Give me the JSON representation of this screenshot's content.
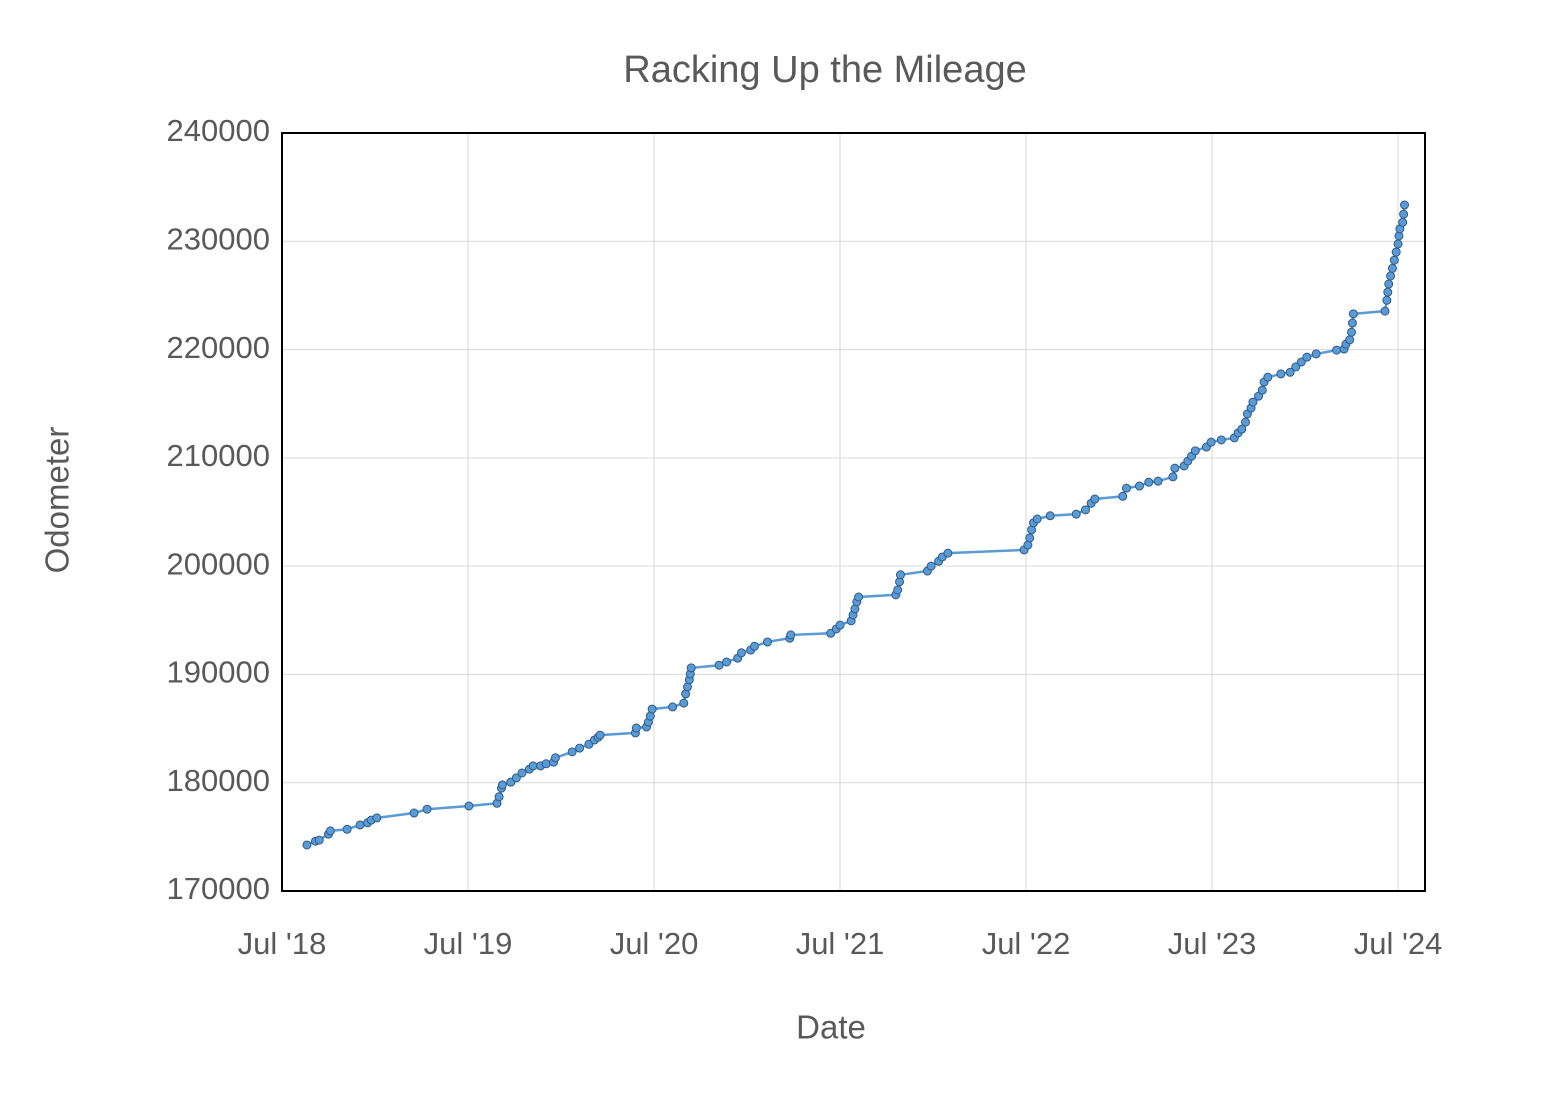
{
  "chart_data": {
    "type": "line",
    "title": "Racking Up the Mileage",
    "x_label": "Date",
    "y_label": "Odometer",
    "color": "#5b9bd5",
    "marker_edge_color": "#2e5b8a",
    "markers": true,
    "grid": true,
    "xlim": [
      2018.5,
      2024.645
    ],
    "ylim": [
      170000,
      240000
    ],
    "xticks": [
      {
        "value": 2018.5,
        "label": "Jul '18"
      },
      {
        "value": 2019.5,
        "label": "Jul '19"
      },
      {
        "value": 2020.5,
        "label": "Jul '20"
      },
      {
        "value": 2021.5,
        "label": "Jul '21"
      },
      {
        "value": 2022.5,
        "label": "Jul '22"
      },
      {
        "value": 2023.5,
        "label": "Jul '23"
      },
      {
        "value": 2024.5,
        "label": "Jul '24"
      }
    ],
    "yticks": [
      170000,
      180000,
      190000,
      200000,
      210000,
      220000,
      230000,
      240000
    ],
    "x": [
      2018.634,
      2018.68,
      2018.7,
      2018.75,
      2018.76,
      2018.85,
      2018.92,
      2018.96,
      2018.98,
      2019.01,
      2019.21,
      2019.28,
      2019.505,
      2019.656,
      2019.667,
      2019.68,
      2019.685,
      2019.73,
      2019.76,
      2019.79,
      2019.83,
      2019.85,
      2019.89,
      2019.92,
      2019.96,
      2019.97,
      2020.06,
      2020.1,
      2020.15,
      2020.18,
      2020.2,
      2020.21,
      2020.4,
      2020.405,
      2020.46,
      2020.47,
      2020.48,
      2020.49,
      2020.6,
      2020.66,
      2020.67,
      2020.68,
      2020.69,
      2020.695,
      2020.7,
      2020.85,
      2020.89,
      2020.95,
      2020.97,
      2021.02,
      2021.04,
      2021.11,
      2021.23,
      2021.235,
      2021.45,
      2021.48,
      2021.5,
      2021.56,
      2021.57,
      2021.58,
      2021.59,
      2021.6,
      2021.8,
      2021.81,
      2021.82,
      2021.825,
      2021.97,
      2021.99,
      2022.03,
      2022.05,
      2022.08,
      2022.49,
      2022.51,
      2022.52,
      2022.53,
      2022.54,
      2022.56,
      2022.63,
      2022.77,
      2022.82,
      2022.85,
      2022.87,
      2023.02,
      2023.04,
      2023.11,
      2023.16,
      2023.21,
      2023.29,
      2023.3,
      2023.35,
      2023.37,
      2023.39,
      2023.41,
      2023.47,
      2023.495,
      2023.55,
      2023.62,
      2023.64,
      2023.66,
      2023.68,
      2023.69,
      2023.71,
      2023.72,
      2023.75,
      2023.77,
      2023.78,
      2023.8,
      2023.87,
      2023.92,
      2023.95,
      2023.98,
      2024.01,
      2024.06,
      2024.17,
      2024.21,
      2024.22,
      2024.24,
      2024.25,
      2024.255,
      2024.26,
      2024.43,
      2024.44,
      2024.445,
      2024.45,
      2024.46,
      2024.47,
      2024.48,
      2024.49,
      2024.5,
      2024.505,
      2024.51,
      2024.525,
      2024.53,
      2024.535
    ],
    "values": [
      174250,
      174600,
      174700,
      175250,
      175550,
      175700,
      176100,
      176300,
      176550,
      176750,
      177200,
      177550,
      177850,
      178100,
      178700,
      179500,
      179800,
      180050,
      180450,
      180900,
      181250,
      181550,
      181550,
      181750,
      181900,
      182300,
      182850,
      183200,
      183550,
      183950,
      184200,
      184400,
      184600,
      185050,
      185150,
      185600,
      186150,
      186800,
      187000,
      187350,
      188200,
      188850,
      189500,
      190050,
      190600,
      190850,
      191150,
      191500,
      192000,
      192250,
      192600,
      193000,
      193350,
      193650,
      193800,
      194200,
      194550,
      194950,
      195500,
      196050,
      196700,
      197150,
      197350,
      197800,
      198550,
      199200,
      199550,
      200000,
      200450,
      200850,
      201200,
      201500,
      201950,
      202600,
      203350,
      204000,
      204350,
      204650,
      204800,
      205200,
      205800,
      206200,
      206450,
      207200,
      207400,
      207750,
      207850,
      208250,
      209050,
      209250,
      209700,
      210150,
      210650,
      211000,
      211450,
      211650,
      211850,
      212300,
      212650,
      213300,
      214050,
      214600,
      215150,
      215700,
      216250,
      217000,
      217450,
      217750,
      217900,
      218400,
      218850,
      219300,
      219600,
      219950,
      220050,
      220500,
      220900,
      221600,
      222450,
      223300,
      223550,
      224550,
      225300,
      226050,
      226800,
      227500,
      228250,
      229000,
      229750,
      230500,
      231150,
      231750,
      232500,
      233350
    ]
  }
}
